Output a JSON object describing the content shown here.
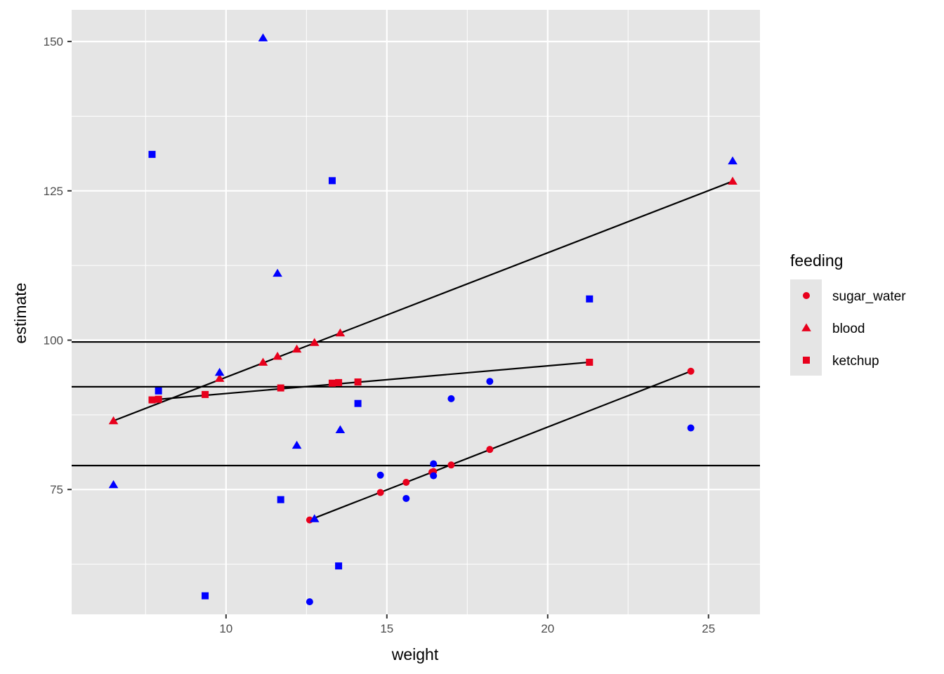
{
  "chart_data": {
    "type": "scatter",
    "xlabel": "weight",
    "ylabel": "estimate",
    "xlim": [
      5.2,
      26.6
    ],
    "ylim": [
      54.1,
      155.3
    ],
    "x_ticks": [
      10,
      15,
      20,
      25
    ],
    "y_ticks": [
      75,
      100,
      125,
      150
    ],
    "x_tick_labels": [
      "10",
      "15",
      "20",
      "25"
    ],
    "y_tick_labels": [
      "75",
      "100",
      "125",
      "150"
    ],
    "background": "#e5e5e5",
    "grid": true,
    "legend": {
      "title": "feeding",
      "position": "right",
      "entries": [
        {
          "label": "sugar_water",
          "shape": "circle"
        },
        {
          "label": "blood",
          "shape": "triangle"
        },
        {
          "label": "ketchup",
          "shape": "square"
        }
      ]
    },
    "colors": {
      "fitted": "#e8001c",
      "observed": "#0000ff",
      "line": "#000000"
    },
    "hlines": [
      99.7,
      92.2,
      79.0
    ],
    "fit_lines": [
      {
        "group": "blood",
        "x": [
          6.5,
          25.75
        ],
        "y": [
          86.5,
          126.6
        ]
      },
      {
        "group": "ketchup",
        "x": [
          7.7,
          21.3
        ],
        "y": [
          90.0,
          96.3
        ]
      },
      {
        "group": "sugar_water",
        "x": [
          12.6,
          24.45
        ],
        "y": [
          69.9,
          94.8
        ]
      }
    ],
    "series": [
      {
        "name": "sugar_water",
        "shape": "circle",
        "color_role": "fitted",
        "x": [
          12.6,
          14.8,
          15.6,
          16.4,
          16.45,
          17.0,
          18.2,
          24.45
        ],
        "y": [
          69.9,
          74.5,
          76.2,
          77.9,
          78.0,
          79.1,
          81.7,
          94.8
        ]
      },
      {
        "name": "blood",
        "shape": "triangle",
        "color_role": "fitted",
        "x": [
          6.5,
          9.8,
          11.15,
          11.6,
          12.2,
          12.75,
          13.55,
          25.75
        ],
        "y": [
          86.5,
          93.6,
          96.3,
          97.3,
          98.5,
          99.6,
          101.2,
          126.6
        ]
      },
      {
        "name": "ketchup",
        "shape": "square",
        "color_role": "fitted",
        "x": [
          7.7,
          7.9,
          9.35,
          11.7,
          13.3,
          13.5,
          14.1,
          21.3
        ],
        "y": [
          90.0,
          90.1,
          90.9,
          92.0,
          92.8,
          92.9,
          93.0,
          96.3
        ]
      },
      {
        "name": "sugar_water",
        "shape": "circle",
        "color_role": "observed",
        "x": [
          12.6,
          14.8,
          15.6,
          16.45,
          16.45,
          17.0,
          18.2,
          24.45
        ],
        "y": [
          56.2,
          77.4,
          73.5,
          79.3,
          77.3,
          90.2,
          93.1,
          85.3
        ]
      },
      {
        "name": "blood",
        "shape": "triangle",
        "color_role": "observed",
        "x": [
          6.5,
          9.8,
          11.15,
          11.6,
          12.2,
          12.75,
          13.55,
          25.75
        ],
        "y": [
          75.8,
          94.6,
          150.6,
          111.2,
          82.4,
          70.1,
          85.0,
          130.0
        ]
      },
      {
        "name": "ketchup",
        "shape": "square",
        "color_role": "observed",
        "x": [
          7.7,
          7.9,
          9.35,
          11.7,
          13.3,
          13.5,
          14.1,
          21.3
        ],
        "y": [
          131.1,
          91.5,
          57.2,
          73.3,
          126.7,
          62.2,
          89.4,
          106.9
        ]
      }
    ]
  }
}
